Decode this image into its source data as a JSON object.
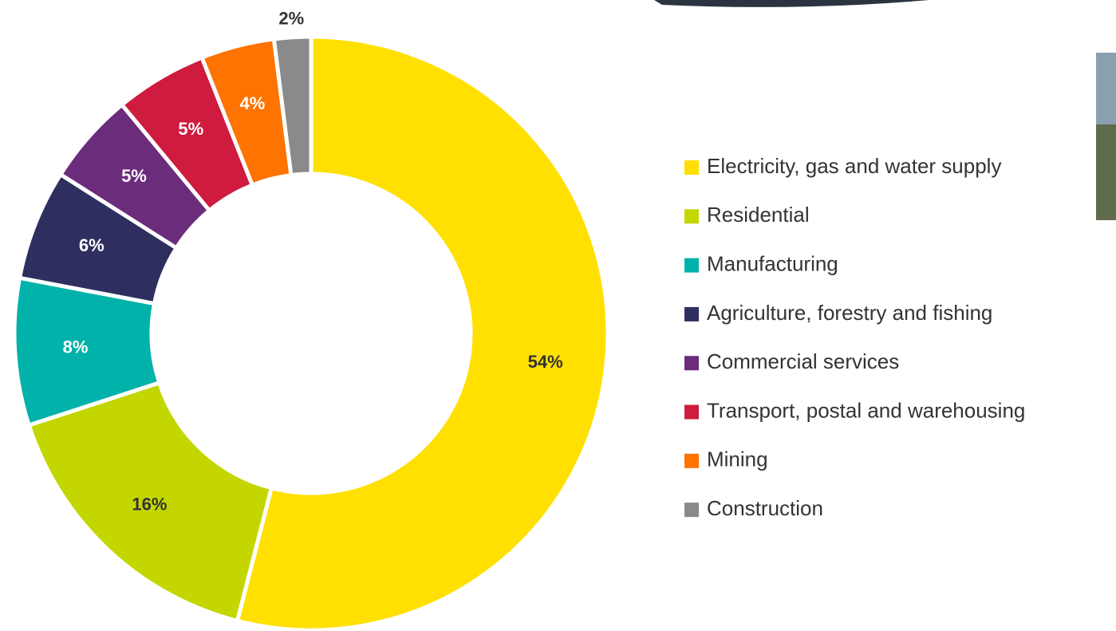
{
  "chart_data": {
    "type": "donut",
    "categories": [
      "Electricity, gas and water supply",
      "Residential",
      "Manufacturing",
      "Agriculture, forestry and fishing",
      "Commercial services",
      "Transport, postal and warehousing",
      "Mining",
      "Construction"
    ],
    "values": [
      54,
      16,
      8,
      6,
      5,
      5,
      4,
      2
    ],
    "value_labels": [
      "54%",
      "16%",
      "8%",
      "6%",
      "5%",
      "5%",
      "4%",
      "2%"
    ],
    "colors": [
      "#ffe000",
      "#c3d600",
      "#00b2a9",
      "#2f2f5f",
      "#6c2c7c",
      "#cf1b3e",
      "#ff7300",
      "#8a8a8a"
    ],
    "legend": "right"
  }
}
